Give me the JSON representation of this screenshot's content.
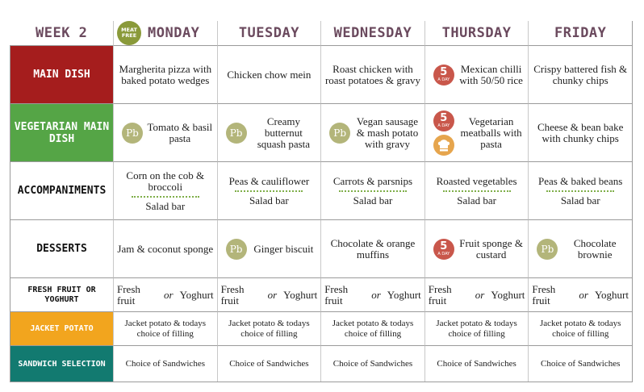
{
  "header": {
    "week": "WEEK 2",
    "meat_free_badge": [
      "MEAT",
      "FREE"
    ],
    "days": [
      "MONDAY",
      "TUESDAY",
      "WEDNESDAY",
      "THURSDAY",
      "FRIDAY"
    ]
  },
  "icons": {
    "plant_based": "Pb",
    "five_a_day": {
      "number": "5",
      "caption": "A DAY"
    }
  },
  "rows": [
    {
      "label": "MAIN DISH",
      "color": "#a51d1d",
      "cells": [
        {
          "text": "Margherita pizza with baked potato wedges"
        },
        {
          "text": "Chicken chow mein"
        },
        {
          "text": "Roast chicken with roast potatoes & gravy"
        },
        {
          "text": "Mexican chilli with 50/50 rice",
          "icons": [
            "five-a-day"
          ]
        },
        {
          "text": "Crispy battered fish & chunky chips"
        }
      ]
    },
    {
      "label": "VEGETARIAN MAIN DISH",
      "color": "#55a546",
      "cells": [
        {
          "text": "Tomato & basil pasta",
          "icons": [
            "plant-based"
          ]
        },
        {
          "text": "Creamy butternut squash pasta",
          "icons": [
            "plant-based"
          ]
        },
        {
          "text": "Vegan sausage & mash potato with gravy",
          "icons": [
            "plant-based"
          ]
        },
        {
          "text": "Vegetarian meatballs with pasta",
          "icons": [
            "five-a-day",
            "chef-hat"
          ]
        },
        {
          "text": "Cheese & bean bake with chunky chips"
        }
      ]
    },
    {
      "label": "ACCOMPANIMENTS",
      "cells": [
        {
          "top": "Corn on the cob & broccoli",
          "bottom": "Salad bar"
        },
        {
          "top": "Peas & cauliflower",
          "bottom": "Salad bar"
        },
        {
          "top": "Carrots & parsnips",
          "bottom": "Salad bar"
        },
        {
          "top": "Roasted vegetables",
          "bottom": "Salad bar"
        },
        {
          "top": "Peas & baked beans",
          "bottom": "Salad bar"
        }
      ]
    },
    {
      "label": "DESSERTS",
      "cells": [
        {
          "text": "Jam & coconut sponge"
        },
        {
          "text": "Ginger biscuit",
          "icons": [
            "plant-based"
          ]
        },
        {
          "text": "Chocolate & orange muffins"
        },
        {
          "text": "Fruit sponge & custard",
          "icons": [
            "five-a-day"
          ]
        },
        {
          "text": "Chocolate brownie",
          "icons": [
            "plant-based"
          ]
        }
      ]
    },
    {
      "label": "FRESH FRUIT OR YOGHURT",
      "cells": [
        {
          "a": "Fresh fruit",
          "or": "or",
          "b": "Yoghurt"
        },
        {
          "a": "Fresh fruit",
          "or": "or",
          "b": "Yoghurt"
        },
        {
          "a": "Fresh fruit",
          "or": "or",
          "b": "Yoghurt"
        },
        {
          "a": "Fresh fruit",
          "or": "or",
          "b": "Yoghurt"
        },
        {
          "a": "Fresh fruit",
          "or": "or",
          "b": "Yoghurt"
        }
      ]
    },
    {
      "label": "JACKET POTATO",
      "color": "#f2a51e",
      "cells": [
        {
          "text": "Jacket potato & todays choice of filling"
        },
        {
          "text": "Jacket potato & todays choice of filling"
        },
        {
          "text": "Jacket potato & todays choice of filling"
        },
        {
          "text": "Jacket potato & todays choice of filling"
        },
        {
          "text": "Jacket potato & todays choice of filling"
        }
      ]
    },
    {
      "label": "SANDWICH SELECTION",
      "color": "#127a70",
      "cells": [
        {
          "text": "Choice of Sandwiches"
        },
        {
          "text": "Choice of Sandwiches"
        },
        {
          "text": "Choice of Sandwiches"
        },
        {
          "text": "Choice of Sandwiches"
        },
        {
          "text": "Choice of Sandwiches"
        }
      ]
    }
  ]
}
